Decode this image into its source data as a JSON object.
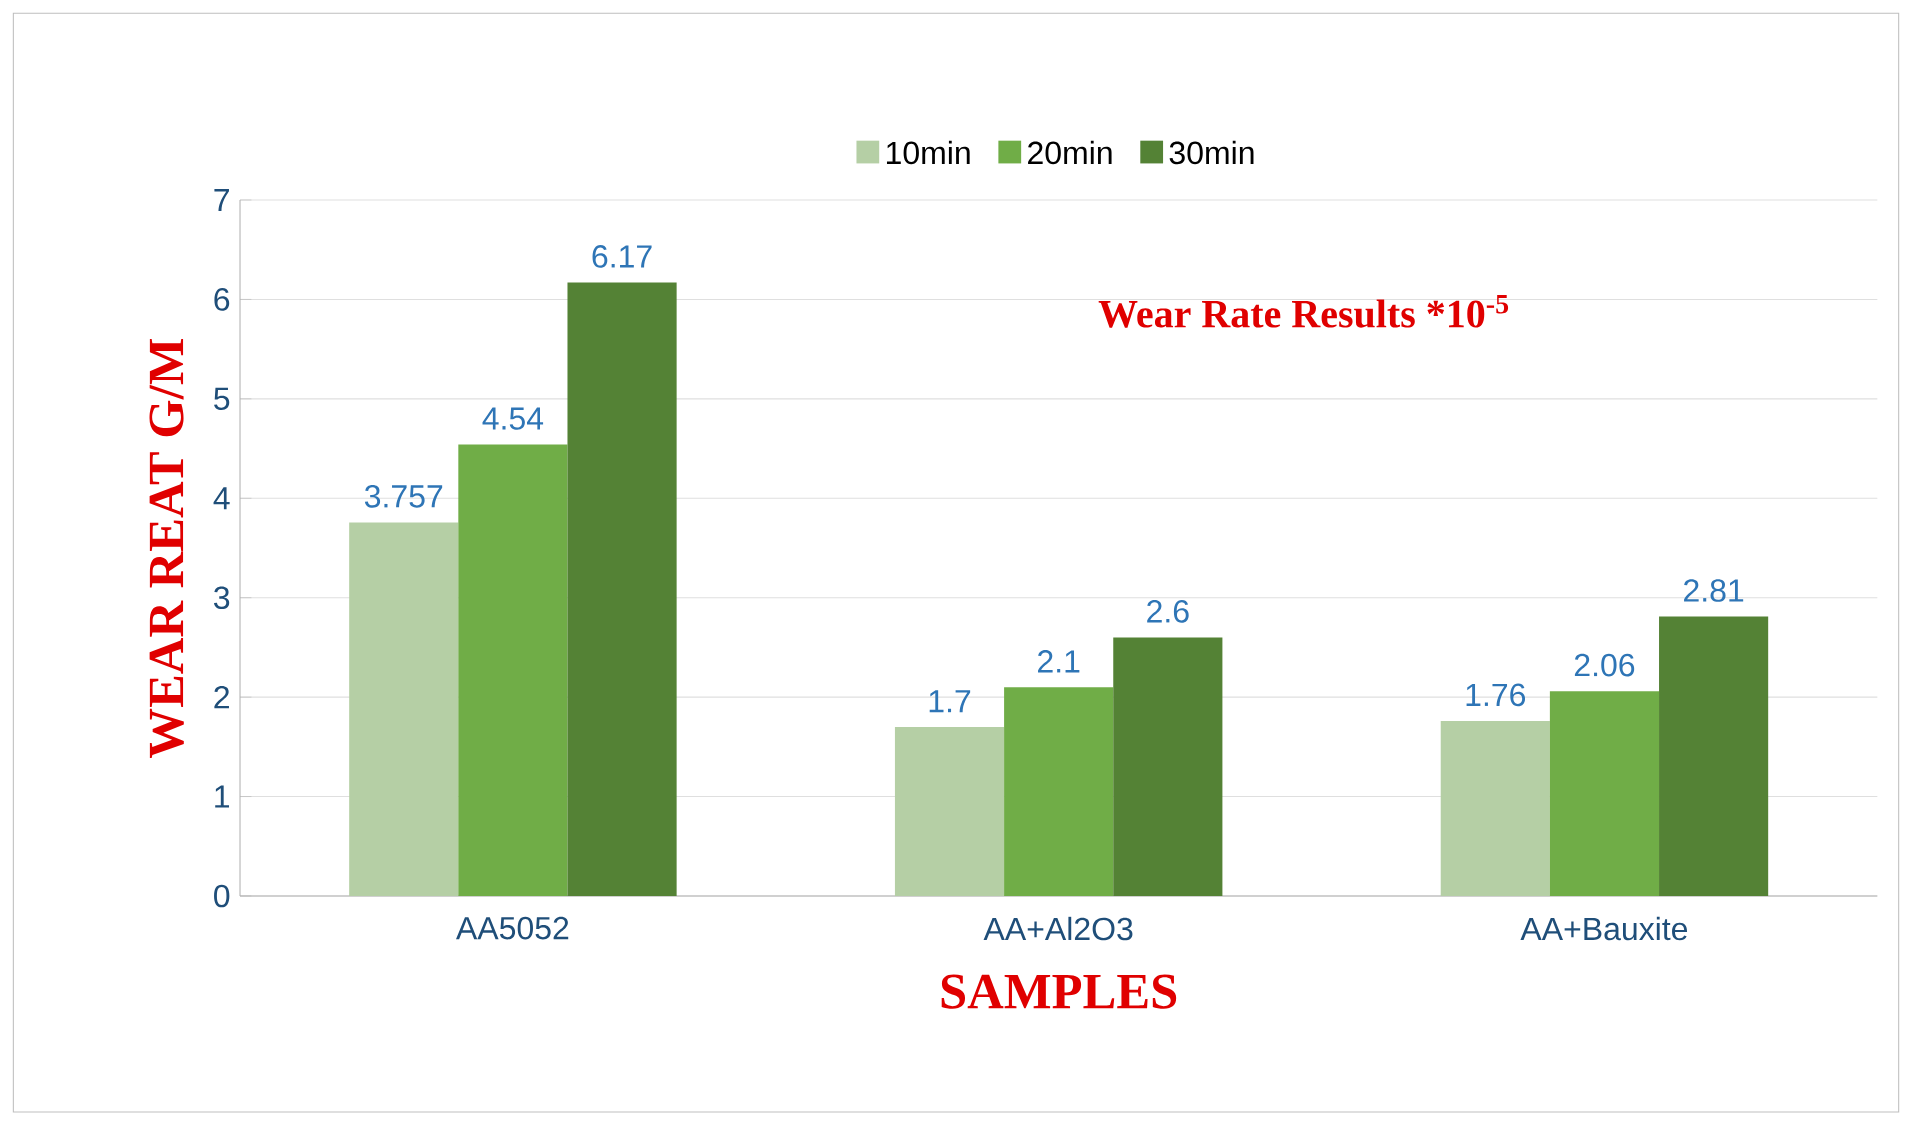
{
  "chart_data": {
    "type": "bar",
    "title": "Wear Rate Results *10$^{-5}$",
    "xlabel": "SAMPLES",
    "ylabel": "WEAR REAT G/M",
    "categories": [
      "AA5052",
      "AA+Al2O3",
      "AA+Bauxite"
    ],
    "series": [
      {
        "name": "10min",
        "color": "#b5cfa5",
        "values": [
          3.757,
          1.7,
          1.76
        ]
      },
      {
        "name": "20min",
        "color": "#70ad47",
        "values": [
          4.54,
          2.1,
          2.06
        ]
      },
      {
        "name": "30min",
        "color": "#548235",
        "values": [
          6.17,
          2.6,
          2.81
        ]
      }
    ],
    "ylim": [
      0,
      7
    ],
    "yticks": [
      0,
      1,
      2,
      3,
      4,
      5,
      6,
      7
    ],
    "grid": "y",
    "legend": "top",
    "data_labels": true
  }
}
